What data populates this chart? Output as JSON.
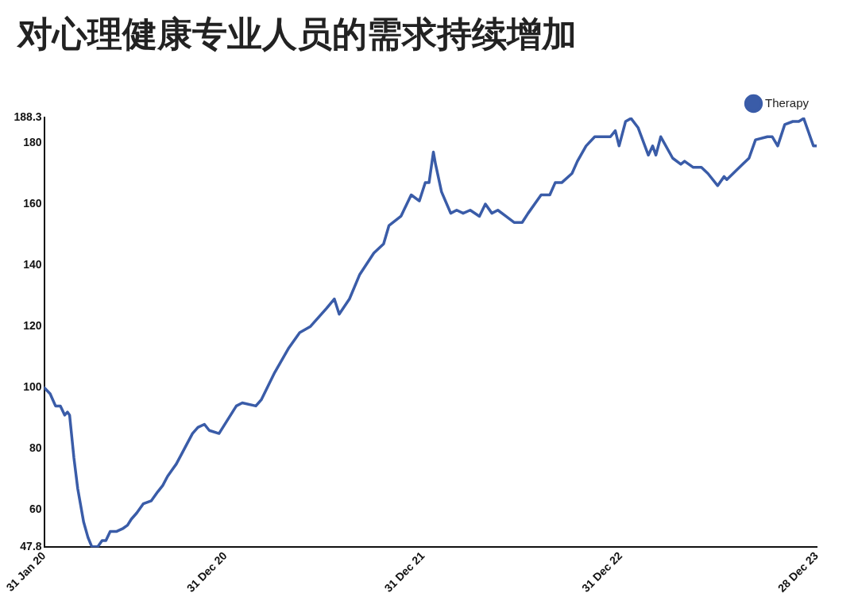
{
  "chart_data": {
    "type": "line",
    "title": "对心理健康专业人员的需求持续增加",
    "x": [
      "2020-01-31",
      "2020-02-11",
      "2020-02-21",
      "2020-03-01",
      "2020-03-09",
      "2020-03-14",
      "2020-03-18",
      "2020-03-26",
      "2020-04-02",
      "2020-04-13",
      "2020-04-21",
      "2020-04-28",
      "2020-05-09",
      "2020-05-17",
      "2020-05-24",
      "2020-06-01",
      "2020-06-13",
      "2020-06-25",
      "2020-07-03",
      "2020-07-10",
      "2020-07-20",
      "2020-08-01",
      "2020-08-16",
      "2020-08-28",
      "2020-09-06",
      "2020-09-15",
      "2020-09-23",
      "2020-10-01",
      "2020-10-10",
      "2020-10-22",
      "2020-10-31",
      "2020-11-10",
      "2020-11-22",
      "2020-12-01",
      "2020-12-19",
      "2021-01-20",
      "2021-01-31",
      "2021-02-25",
      "2021-03-07",
      "2021-04-01",
      "2021-04-27",
      "2021-05-17",
      "2021-06-06",
      "2021-07-06",
      "2021-07-20",
      "2021-07-29",
      "2021-08-17",
      "2021-09-05",
      "2021-10-01",
      "2021-10-19",
      "2021-10-29",
      "2021-11-20",
      "2021-12-09",
      "2021-12-24",
      "2022-01-04",
      "2022-01-11",
      "2022-01-19",
      "2022-01-23",
      "2022-02-03",
      "2022-02-20",
      "2022-03-03",
      "2022-03-15",
      "2022-03-28",
      "2022-04-14",
      "2022-04-25",
      "2022-05-07",
      "2022-05-18",
      "2022-06-02",
      "2022-06-17",
      "2022-07-02",
      "2022-07-13",
      "2022-08-06",
      "2022-08-22",
      "2022-09-01",
      "2022-09-13",
      "2022-10-02",
      "2022-10-12",
      "2022-10-28",
      "2022-11-13",
      "2022-12-12",
      "2022-12-21",
      "2022-12-28",
      "2023-01-09",
      "2023-01-19",
      "2023-02-01",
      "2023-02-20",
      "2023-02-28",
      "2023-03-06",
      "2023-03-15",
      "2023-04-06",
      "2023-04-21",
      "2023-04-28",
      "2023-05-14",
      "2023-05-29",
      "2023-06-10",
      "2023-06-28",
      "2023-07-10",
      "2023-07-15",
      "2023-08-13",
      "2023-08-25",
      "2023-09-06",
      "2023-09-28",
      "2023-10-07",
      "2023-10-17",
      "2023-10-30",
      "2023-11-14",
      "2023-11-25",
      "2023-12-04",
      "2023-12-22",
      "2023-12-28"
    ],
    "series": [
      {
        "name": "Therapy",
        "color": "#3a5ca8",
        "values": [
          100,
          98,
          94,
          94,
          91,
          92,
          91,
          77,
          67,
          56,
          51,
          48,
          48,
          50,
          50,
          53,
          53,
          54,
          55,
          57,
          59,
          62,
          63,
          66,
          68,
          71,
          73,
          75,
          78,
          82,
          85,
          87,
          88,
          86,
          85,
          94,
          95,
          94,
          96,
          105,
          113,
          118,
          120,
          126,
          129,
          124,
          129,
          137,
          144,
          147,
          153,
          156,
          163,
          161,
          167,
          167,
          177,
          173,
          164,
          157,
          158,
          157,
          158,
          156,
          160,
          157,
          158,
          156,
          154,
          154,
          157,
          163,
          163,
          167,
          167,
          170,
          174,
          179,
          182,
          182,
          184,
          179,
          187,
          188,
          185,
          176,
          179,
          176,
          182,
          175,
          173,
          174,
          172,
          172,
          170,
          166,
          169,
          168,
          173,
          175,
          181,
          182,
          182,
          179,
          186,
          187,
          187,
          188,
          179,
          179
        ]
      }
    ],
    "xlim": [
      "2020-01-31",
      "2023-12-28"
    ],
    "xticks": [
      {
        "value": "2020-01-31",
        "label": "31 Jan 20"
      },
      {
        "value": "2020-12-31",
        "label": "31 Dec 20"
      },
      {
        "value": "2021-12-31",
        "label": "31 Dec 21"
      },
      {
        "value": "2022-12-31",
        "label": "31 Dec 22"
      },
      {
        "value": "2023-12-28",
        "label": "28 Dec 23"
      }
    ],
    "ylim": [
      47.8,
      188.3
    ],
    "yticks": [
      47.8,
      60,
      80,
      100,
      120,
      140,
      160,
      180,
      188.3
    ],
    "grid": false,
    "legend": "top right",
    "marker": "none",
    "line_style": "solid"
  }
}
